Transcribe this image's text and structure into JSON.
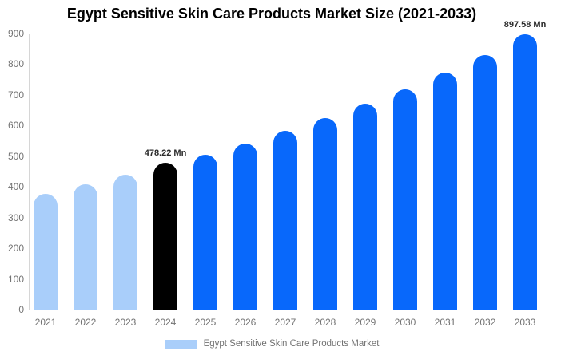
{
  "chart_data": {
    "type": "bar",
    "title": "Egypt Sensitive Skin Care Products Market Size (2021-2033)",
    "categories": [
      "2021",
      "2022",
      "2023",
      "2024",
      "2025",
      "2026",
      "2027",
      "2028",
      "2029",
      "2030",
      "2031",
      "2032",
      "2033"
    ],
    "values": [
      378,
      408,
      440,
      478.22,
      505,
      540,
      583,
      625,
      670,
      718,
      773,
      830,
      897.58
    ],
    "series_name": "Egypt Sensitive Skin Care Products Market",
    "unit": "Mn",
    "ylim": [
      0,
      900
    ],
    "yticks": [
      0,
      100,
      200,
      300,
      400,
      500,
      600,
      700,
      800,
      900
    ],
    "grid": false,
    "legend_position": "bottom",
    "bar_roles": [
      "historical",
      "historical",
      "historical",
      "base_year",
      "forecast",
      "forecast",
      "forecast",
      "forecast",
      "forecast",
      "forecast",
      "forecast",
      "forecast",
      "forecast"
    ],
    "palette": {
      "historical": "#A9CEFA",
      "base_year": "#000000",
      "forecast": "#0868FB"
    },
    "data_labels": {
      "2024": "478.22 Mn",
      "2033": "897.58 Mn"
    },
    "axis_color": "#D6D6D6",
    "tick_color": "#737373"
  },
  "legend": {
    "label": "Egypt Sensitive Skin Care Products Market",
    "swatch_color": "#A9CEFA"
  }
}
